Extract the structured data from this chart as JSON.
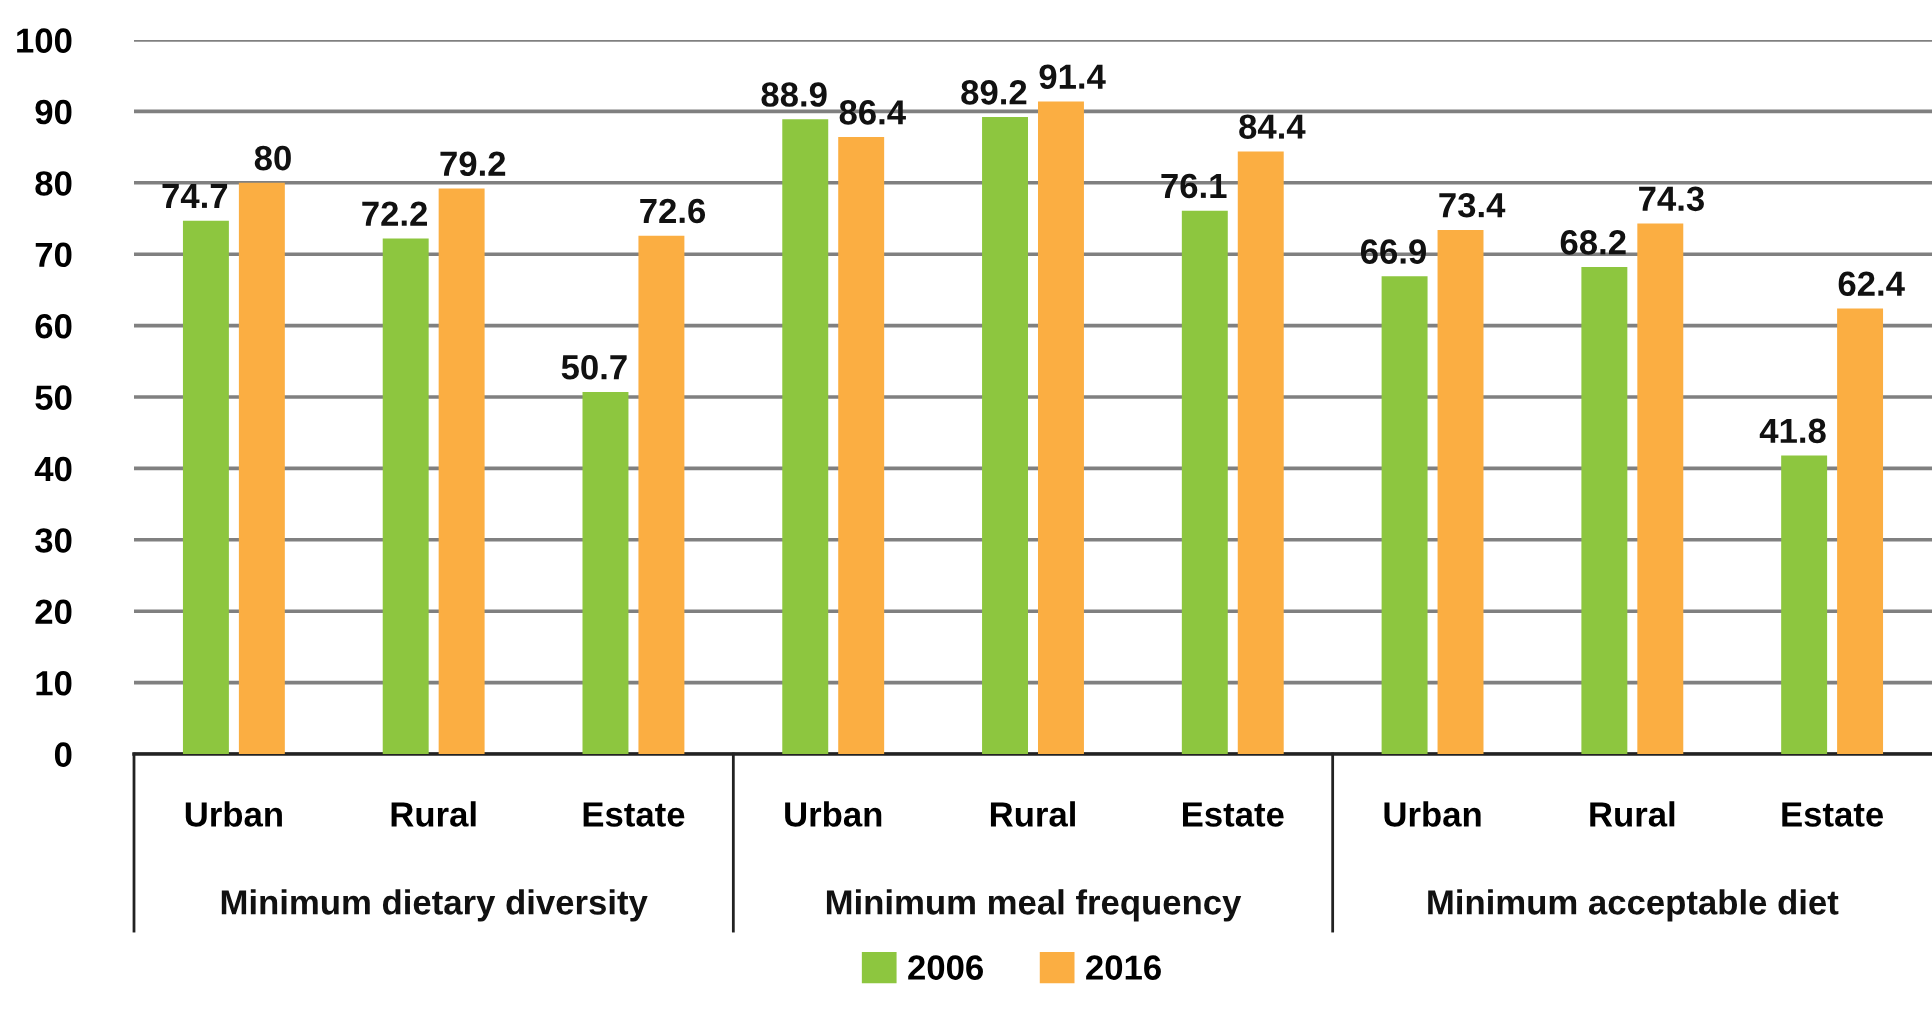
{
  "chart_data": {
    "type": "bar",
    "categories": [
      "Urban",
      "Rural",
      "Estate",
      "Urban",
      "Rural",
      "Estate",
      "Urban",
      "Rural",
      "Estate"
    ],
    "series": [
      {
        "name": "2006",
        "color": "#8dc63f",
        "values": [
          74.7,
          72.2,
          50.7,
          88.9,
          89.2,
          76.1,
          66.9,
          68.2,
          41.8
        ]
      },
      {
        "name": "2016",
        "color": "#fbae42",
        "values": [
          80,
          79.2,
          72.6,
          86.4,
          91.4,
          84.4,
          73.4,
          74.3,
          62.4
        ]
      }
    ],
    "annotations": [
      "Minimum dietary diversity",
      "Minimum meal frequency",
      "Minimum acceptable diet"
    ],
    "ylim": [
      0,
      100
    ],
    "yticks": [
      0,
      10,
      20,
      30,
      40,
      50,
      60,
      70,
      80,
      90,
      100
    ],
    "grid": "y",
    "legend": "bottom",
    "data_labels": true
  }
}
